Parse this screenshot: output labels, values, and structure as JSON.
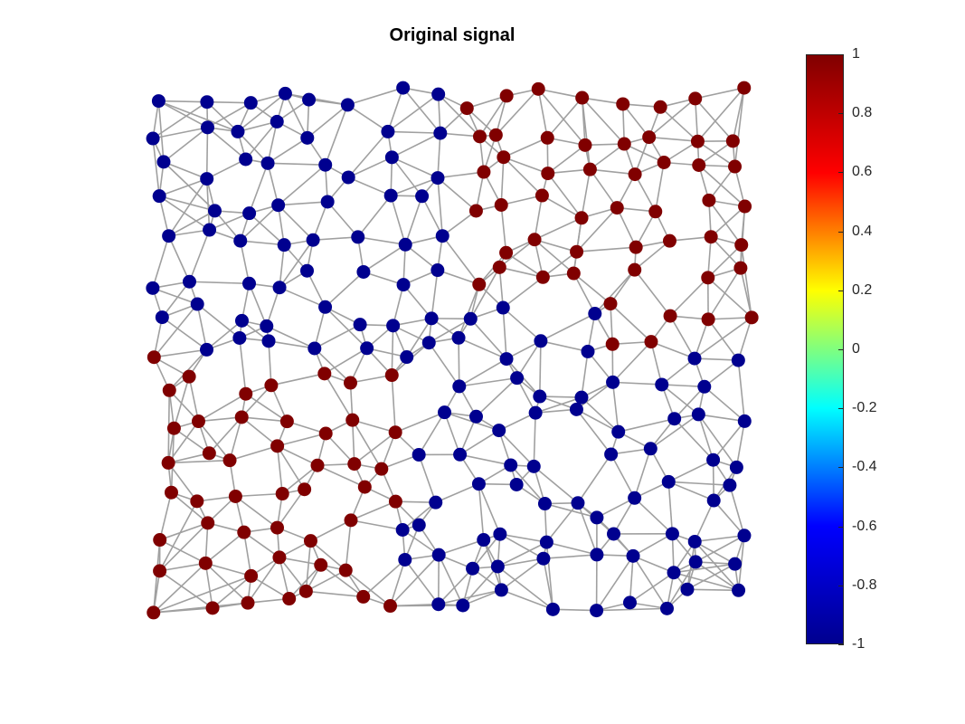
{
  "title": "Original signal",
  "colors": {
    "positive_node": "#800000",
    "negative_node": "#00008F",
    "edge": "#A0A0A0",
    "axis": "#262626"
  },
  "colorbar": {
    "colormap": "jet",
    "min": -1,
    "max": 1,
    "ticks": [
      "1",
      "0.8",
      "0.6",
      "0.4",
      "0.2",
      "0",
      "-0.2",
      "-0.4",
      "-0.6",
      "-0.8",
      "-1"
    ]
  },
  "graph": {
    "node_count_approx": 250,
    "edges_drawn": "k-nearest neighbors",
    "signal_values": [
      -1,
      1
    ]
  }
}
